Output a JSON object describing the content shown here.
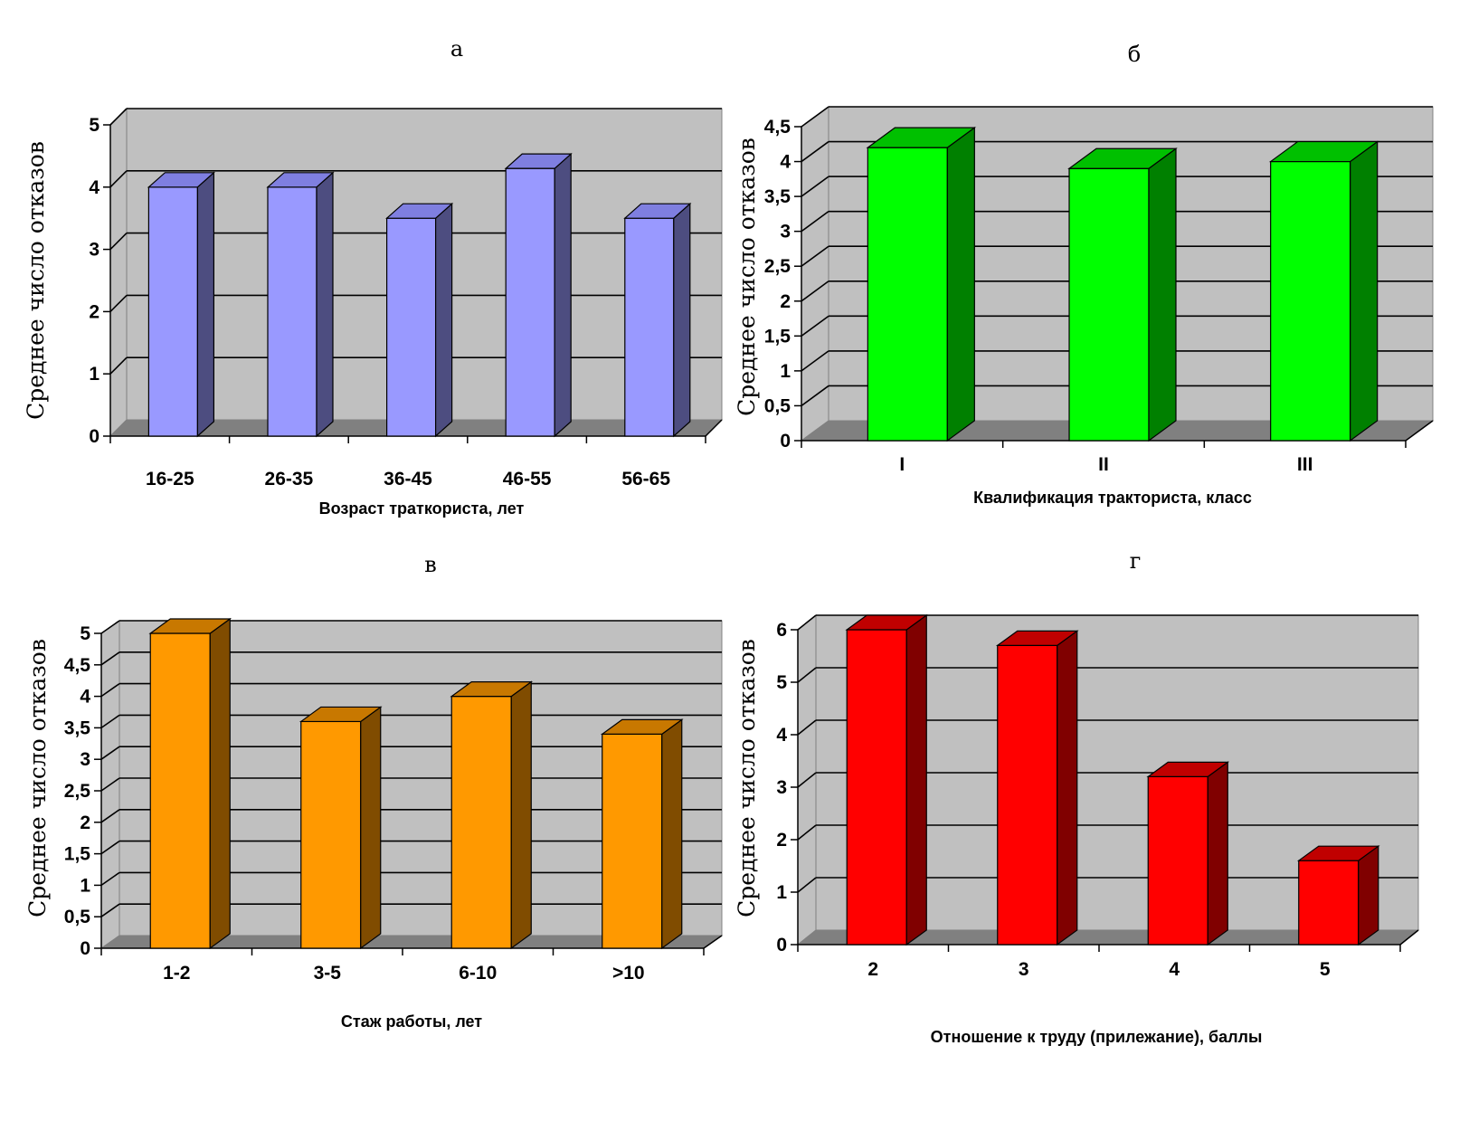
{
  "chart_data": [
    {
      "type": "bar",
      "panel": "а",
      "categories": [
        "16-25",
        "26-35",
        "36-45",
        "46-55",
        "56-65"
      ],
      "values": [
        4,
        4,
        3.5,
        4.3,
        3.5
      ],
      "ylabel": "Среднее число отказов",
      "xlabel": "Возраст траткориста, лет",
      "yticks": [
        "0",
        "1",
        "2",
        "3",
        "4",
        "5"
      ],
      "ylim": [
        0,
        5
      ],
      "grid": true,
      "colors": {
        "front": "#9999ff",
        "side": "#4d4d80",
        "top": "#7f7fe0"
      }
    },
    {
      "type": "bar",
      "panel": "б",
      "categories": [
        "I",
        "II",
        "III"
      ],
      "values": [
        4.2,
        3.9,
        4
      ],
      "ylabel": "Среднее число отказов",
      "xlabel": "Квалификация тракториста, класс",
      "yticks": [
        "0",
        "0,5",
        "1",
        "1,5",
        "2",
        "2,5",
        "3",
        "3,5",
        "4",
        "4,5"
      ],
      "ylim": [
        0,
        4.5
      ],
      "grid": true,
      "colors": {
        "front": "#00ff00",
        "side": "#008000",
        "top": "#00c000"
      }
    },
    {
      "type": "bar",
      "panel": "в",
      "categories": [
        "1-2",
        "3-5",
        "6-10",
        ">10"
      ],
      "values": [
        5,
        3.6,
        4,
        3.4
      ],
      "ylabel": "Среднее число отказов",
      "xlabel": "Стаж работы, лет",
      "yticks": [
        "0",
        "0,5",
        "1",
        "1,5",
        "2",
        "2,5",
        "3",
        "3,5",
        "4",
        "4,5",
        "5"
      ],
      "ylim": [
        0,
        5
      ],
      "grid": true,
      "colors": {
        "front": "#ff9900",
        "side": "#804c00",
        "top": "#c87800"
      }
    },
    {
      "type": "bar",
      "panel": "г",
      "categories": [
        "2",
        "3",
        "4",
        "5"
      ],
      "values": [
        6,
        5.7,
        3.2,
        1.6
      ],
      "ylabel": "Среднее число отказов",
      "xlabel": "Отношение к труду (прилежание), баллы",
      "yticks": [
        "0",
        "1",
        "2",
        "3",
        "4",
        "5",
        "6"
      ],
      "ylim": [
        0,
        6
      ],
      "grid": true,
      "colors": {
        "front": "#ff0000",
        "side": "#800000",
        "top": "#c00000"
      }
    }
  ]
}
